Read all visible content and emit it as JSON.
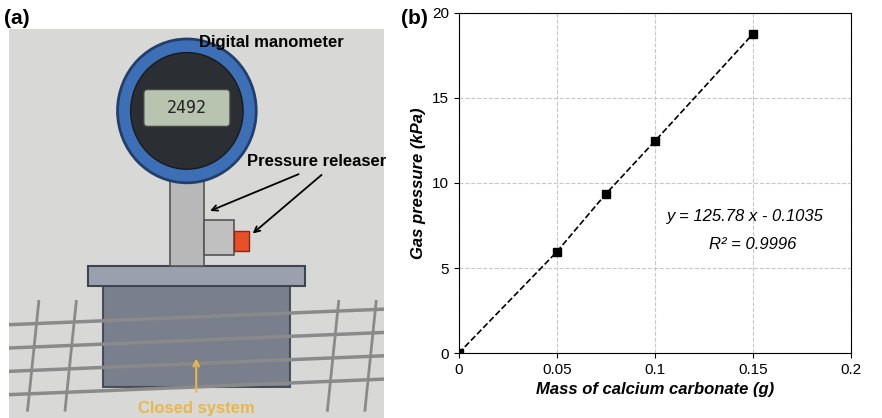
{
  "panel_a": {
    "label": "(a)",
    "manometer_label": "Digital manometer",
    "releaser_label": "Pressure releaser",
    "system_label": "Closed system",
    "display_reading": "2492"
  },
  "chart_data": {
    "panel_label": "(b)",
    "type": "line",
    "x": [
      0,
      0.05,
      0.075,
      0.1,
      0.15
    ],
    "values": [
      0,
      5.95,
      9.35,
      12.45,
      18.75
    ],
    "color": "#000000",
    "marker": "square",
    "line_style": "dashed",
    "xlabel": "Mass of calcium carbonate (g)",
    "ylabel": "Gas pressure (kPa)",
    "xlim": [
      0,
      0.2
    ],
    "xticks": [
      0,
      0.05,
      0.1,
      0.15,
      0.2
    ],
    "ylim": [
      0,
      20
    ],
    "yticks": [
      0,
      5,
      10,
      15,
      20
    ],
    "grid": true,
    "annotations": [
      "y = 125.78 x - 0.1035",
      "R² = 0.9996"
    ]
  }
}
